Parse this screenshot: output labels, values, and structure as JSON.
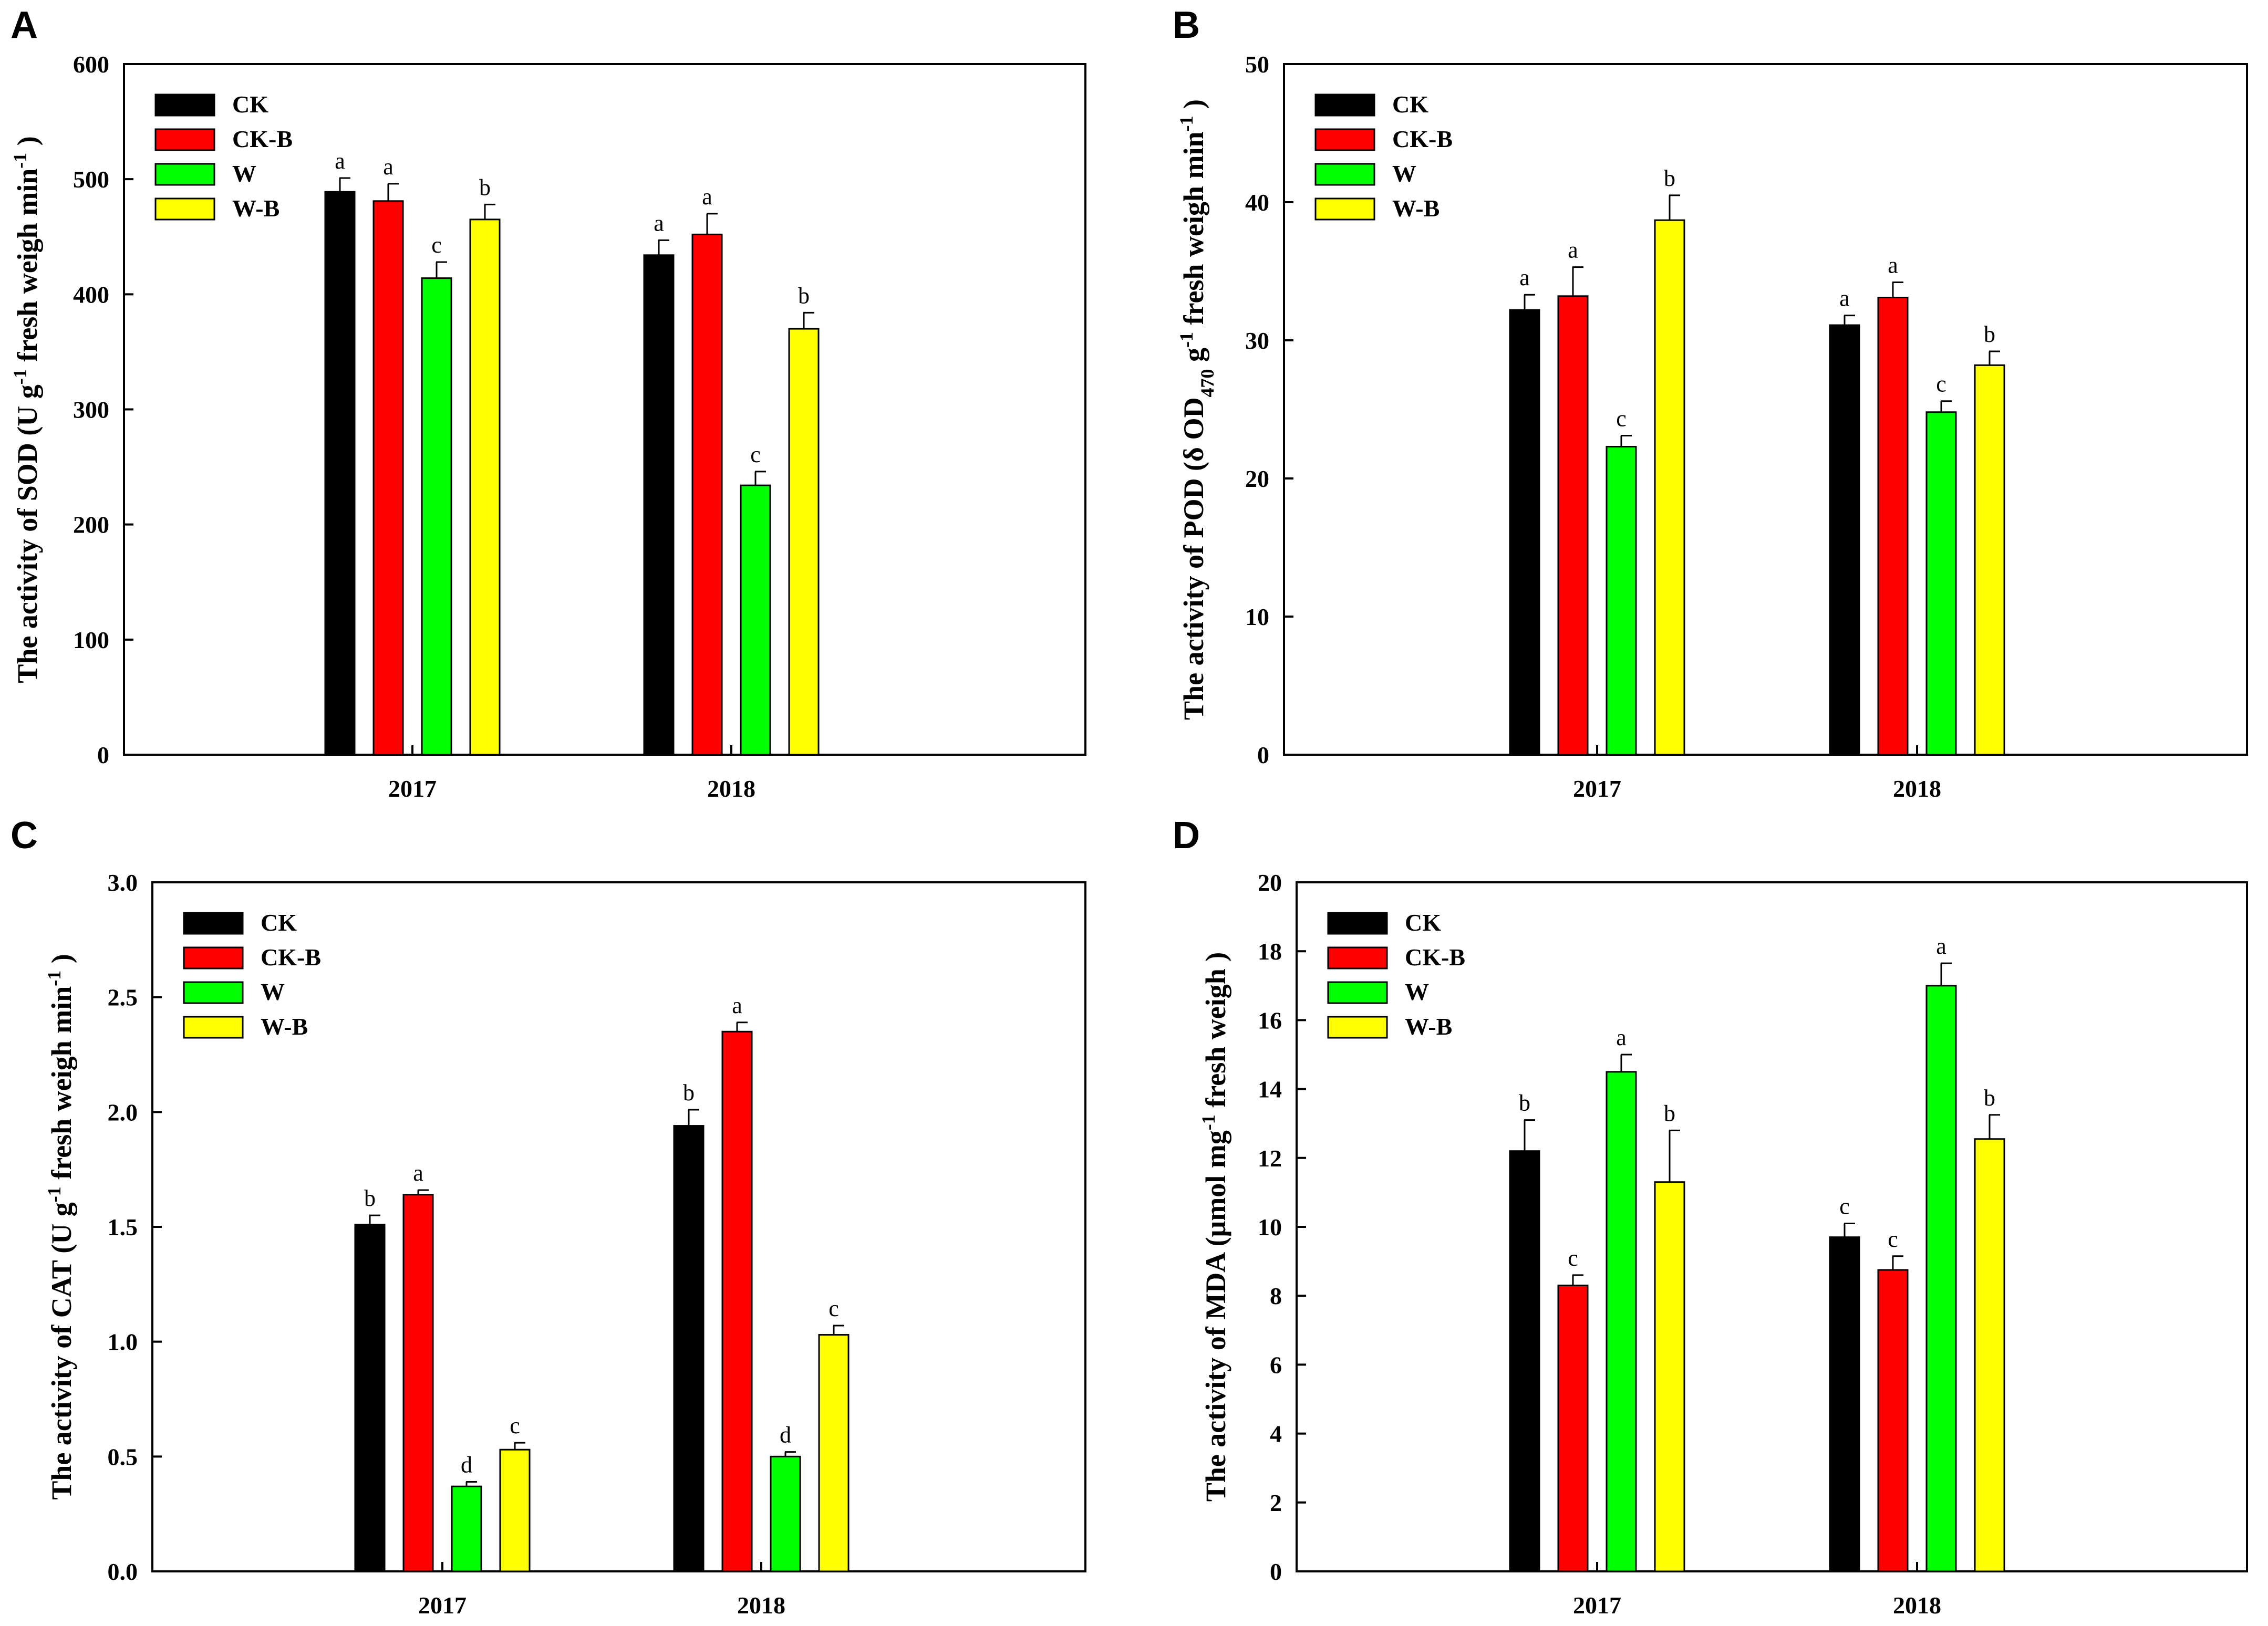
{
  "figure": {
    "colors": {
      "CK": "#000000",
      "CK-B": "#ff0000",
      "W": "#00ff00",
      "W-B": "#ffff00"
    }
  },
  "chart_data": [
    {
      "panel": "A",
      "type": "bar",
      "ylabel_parts": [
        "The activity of SOD (U g",
        "-1",
        " fresh weigh min",
        "-1",
        " )"
      ],
      "categories": [
        "2017",
        "2018"
      ],
      "ylim": [
        0,
        600
      ],
      "yticks": [
        0,
        100,
        200,
        300,
        400,
        500,
        600
      ],
      "ytick_labels": [
        "0",
        "100",
        "200",
        "300",
        "400",
        "500",
        "600"
      ],
      "legend": [
        "CK",
        "CK-B",
        "W",
        "W-B"
      ],
      "series": [
        {
          "name": "CK",
          "values": [
            489,
            434
          ],
          "errors": [
            12,
            13
          ],
          "letters": [
            "a",
            "a"
          ]
        },
        {
          "name": "CK-B",
          "values": [
            481,
            452
          ],
          "errors": [
            15,
            18
          ],
          "letters": [
            "a",
            "a"
          ]
        },
        {
          "name": "W",
          "values": [
            414,
            234
          ],
          "errors": [
            14,
            12
          ],
          "letters": [
            "c",
            "c"
          ]
        },
        {
          "name": "W-B",
          "values": [
            465,
            370
          ],
          "errors": [
            13,
            14
          ],
          "letters": [
            "b",
            "b"
          ]
        }
      ]
    },
    {
      "panel": "B",
      "type": "bar",
      "ylabel_parts": [
        "The activity of POD (δ OD",
        "470",
        " g",
        "-1",
        " fresh weigh min",
        "-1",
        " )"
      ],
      "categories": [
        "2017",
        "2018"
      ],
      "ylim": [
        0,
        50
      ],
      "yticks": [
        0,
        10,
        20,
        30,
        40,
        50
      ],
      "ytick_labels": [
        "0",
        "10",
        "20",
        "30",
        "40",
        "50"
      ],
      "legend": [
        "CK",
        "CK-B",
        "W",
        "W-B"
      ],
      "series": [
        {
          "name": "CK",
          "values": [
            32.2,
            31.1
          ],
          "errors": [
            1.1,
            0.7
          ],
          "letters": [
            "a",
            "a"
          ]
        },
        {
          "name": "CK-B",
          "values": [
            33.2,
            33.1
          ],
          "errors": [
            2.1,
            1.1
          ],
          "letters": [
            "a",
            "a"
          ]
        },
        {
          "name": "W",
          "values": [
            22.3,
            24.8
          ],
          "errors": [
            0.8,
            0.8
          ],
          "letters": [
            "c",
            "c"
          ]
        },
        {
          "name": "W-B",
          "values": [
            38.7,
            28.2
          ],
          "errors": [
            1.8,
            1.0
          ],
          "letters": [
            "b",
            "b"
          ]
        }
      ]
    },
    {
      "panel": "C",
      "type": "bar",
      "ylabel_parts": [
        "The activity of CAT (U g",
        "-1",
        " fresh weigh min",
        "-1",
        " )"
      ],
      "categories": [
        "2017",
        "2018"
      ],
      "ylim": [
        0,
        3.0
      ],
      "yticks": [
        0,
        0.5,
        1.0,
        1.5,
        2.0,
        2.5,
        3.0
      ],
      "ytick_labels": [
        "0.0",
        "0.5",
        "1.0",
        "1.5",
        "2.0",
        "2.5",
        "3.0"
      ],
      "legend": [
        "CK",
        "CK-B",
        "W",
        "W-B"
      ],
      "series": [
        {
          "name": "CK",
          "values": [
            1.51,
            1.94
          ],
          "errors": [
            0.04,
            0.07
          ],
          "letters": [
            "b",
            "b"
          ]
        },
        {
          "name": "CK-B",
          "values": [
            1.64,
            2.35
          ],
          "errors": [
            0.02,
            0.04
          ],
          "letters": [
            "a",
            "a"
          ]
        },
        {
          "name": "W",
          "values": [
            0.37,
            0.5
          ],
          "errors": [
            0.02,
            0.02
          ],
          "letters": [
            "d",
            "d"
          ]
        },
        {
          "name": "W-B",
          "values": [
            0.53,
            1.03
          ],
          "errors": [
            0.03,
            0.04
          ],
          "letters": [
            "c",
            "c"
          ]
        }
      ]
    },
    {
      "panel": "D",
      "type": "bar",
      "ylabel_parts": [
        "The activity of MDA (μmol mg",
        "-1",
        " fresh weigh )"
      ],
      "categories": [
        "2017",
        "2018"
      ],
      "ylim": [
        0,
        20
      ],
      "yticks": [
        0,
        2,
        4,
        6,
        8,
        10,
        12,
        14,
        16,
        18,
        20
      ],
      "ytick_labels": [
        "0",
        "2",
        "4",
        "6",
        "8",
        "10",
        "12",
        "14",
        "16",
        "18",
        "20"
      ],
      "legend": [
        "CK",
        "CK-B",
        "W",
        "W-B"
      ],
      "series": [
        {
          "name": "CK",
          "values": [
            12.2,
            9.7
          ],
          "errors": [
            0.9,
            0.4
          ],
          "letters": [
            "b",
            "c"
          ]
        },
        {
          "name": "CK-B",
          "values": [
            8.3,
            8.75
          ],
          "errors": [
            0.3,
            0.4
          ],
          "letters": [
            "c",
            "c"
          ]
        },
        {
          "name": "W",
          "values": [
            14.5,
            17.0
          ],
          "errors": [
            0.5,
            0.65
          ],
          "letters": [
            "a",
            "a"
          ]
        },
        {
          "name": "W-B",
          "values": [
            11.3,
            12.55
          ],
          "errors": [
            1.5,
            0.7
          ],
          "letters": [
            "b",
            "b"
          ]
        }
      ]
    }
  ]
}
